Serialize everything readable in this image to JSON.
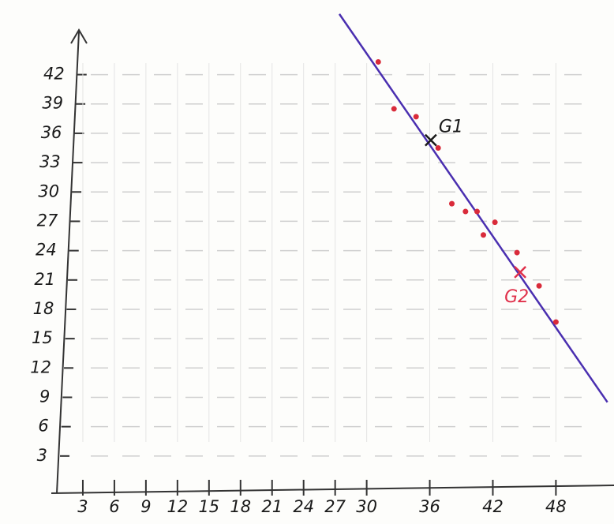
{
  "chart_data": {
    "type": "scatter",
    "xlim": [
      0,
      53
    ],
    "ylim": [
      0,
      46
    ],
    "xticks": [
      3,
      6,
      9,
      12,
      15,
      18,
      21,
      24,
      27,
      30,
      36,
      42,
      48
    ],
    "yticks": [
      3,
      6,
      9,
      12,
      15,
      18,
      21,
      24,
      27,
      30,
      33,
      36,
      39,
      42
    ],
    "grid": true,
    "series": [
      {
        "color": "#d92b3a",
        "x": [
          31.1,
          32.6,
          34.7,
          36.8,
          38.1,
          39.4,
          40.5,
          41.1,
          42.2,
          44.3,
          46.4,
          48
        ],
        "values": [
          43.3,
          38.5,
          37.7,
          34.5,
          28.8,
          28.0,
          28.0,
          25.6,
          26.9,
          23.8,
          20.4,
          16.7
        ]
      }
    ],
    "fit_line": {
      "color": "#4a2fb0",
      "x": [
        27.4,
        52.9
      ],
      "values": [
        48.2,
        8.5
      ]
    },
    "annotations": [
      {
        "text": "G1",
        "x": 36.1,
        "y": 35.3,
        "color": "#1a1a1a"
      },
      {
        "text": "G2",
        "x": 44.6,
        "y": 21.8,
        "color": "#e0304a"
      }
    ]
  }
}
